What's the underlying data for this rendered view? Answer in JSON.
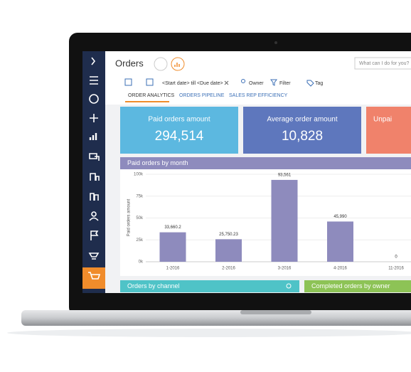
{
  "header": {
    "title": "Orders",
    "search": "What can I do for you?"
  },
  "toolbar": {
    "period": "<Start date> till <Due date>",
    "owner": "Owner",
    "filter": "Filter",
    "tag": "Tag"
  },
  "tabs": [
    "ORDER ANALYTICS",
    "ORDERS PIPELINE",
    "SALES REP EFFICIENCY"
  ],
  "kpis": [
    {
      "label": "Paid orders amount",
      "value": "294,514",
      "color": "#5cb8e0"
    },
    {
      "label": "Average order amount",
      "value": "10,828",
      "color": "#5e77bd"
    },
    {
      "label": "Unpai",
      "color": "#f0826b"
    }
  ],
  "chart": {
    "type": "bar",
    "title": "Paid orders by month",
    "y_label": "Paid orders amount",
    "categories": [
      "1-2016",
      "2-2016",
      "3-2016",
      "4-2016",
      "11-2016"
    ],
    "values": [
      33660.2,
      25750.23,
      93561,
      45990,
      0
    ],
    "value_labels": [
      "33,660.2",
      "25,750.23",
      "93,561",
      "45,990",
      "0"
    ],
    "color": "#8e8bbd",
    "ylim": [
      0,
      100000
    ],
    "yticks": [
      {
        "value": 0,
        "label": "0k"
      },
      {
        "value": 25000,
        "label": "25k"
      },
      {
        "value": 50000,
        "label": "50k"
      },
      {
        "value": 75000,
        "label": "75k"
      },
      {
        "value": 100000,
        "label": "100k"
      }
    ]
  },
  "panels": [
    {
      "title": "Orders by channel",
      "color": "#4fc3c7"
    },
    {
      "title": "Completed orders by owner",
      "color": "#8dc356"
    }
  ]
}
